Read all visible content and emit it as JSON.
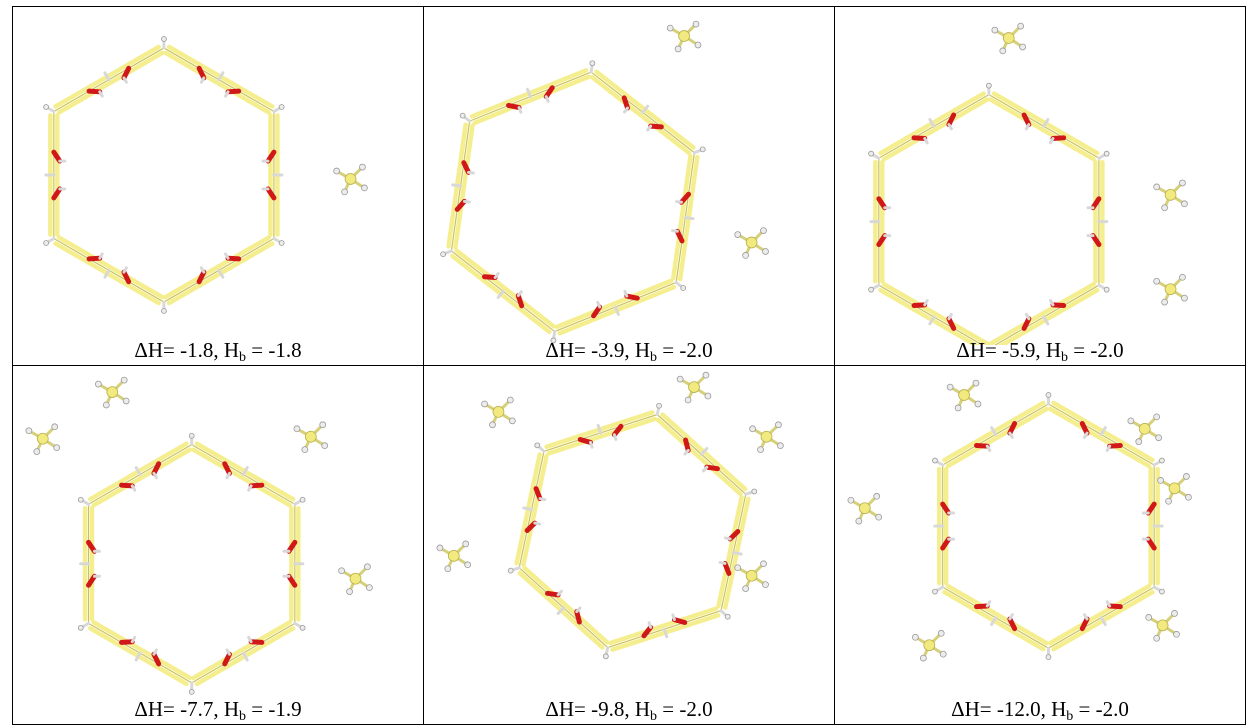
{
  "panels": [
    {
      "dh": "-1.8",
      "hb": "-1.8",
      "solvent_molecules": 1,
      "cx": 155,
      "cy": 167,
      "r": 125
    },
    {
      "dh": "-3.9",
      "hb": "-2.0",
      "solvent_molecules": 2,
      "cx": 150,
      "cy": 190,
      "r": 130
    },
    {
      "dh": "-5.9",
      "hb": "-2.0",
      "solvent_molecules": 3,
      "cx": 160,
      "cy": 210,
      "r": 130
    },
    {
      "dh": "-7.7",
      "hb": "-1.9",
      "solvent_molecules": 4,
      "cx": 178,
      "cy": 193,
      "r": 128
    },
    {
      "dh": "-9.8",
      "hb": "-2.0",
      "solvent_molecules": 5,
      "cx": 200,
      "cy": 163,
      "r": 125
    },
    {
      "dh": "-12.0",
      "hb": "-2.0",
      "solvent_molecules": 6,
      "cx": 200,
      "cy": 163,
      "r": 125
    }
  ],
  "caption_parts": {
    "dh_prefix": "ΔH= ",
    "hb_prefix": ", H",
    "hb_sub": "b",
    "hb_eq": " = "
  },
  "colors": {
    "carbon": "#f5ee8f",
    "oxygen": "#d01818",
    "hydrogen": "#d8d8d8",
    "border": "#000000"
  }
}
